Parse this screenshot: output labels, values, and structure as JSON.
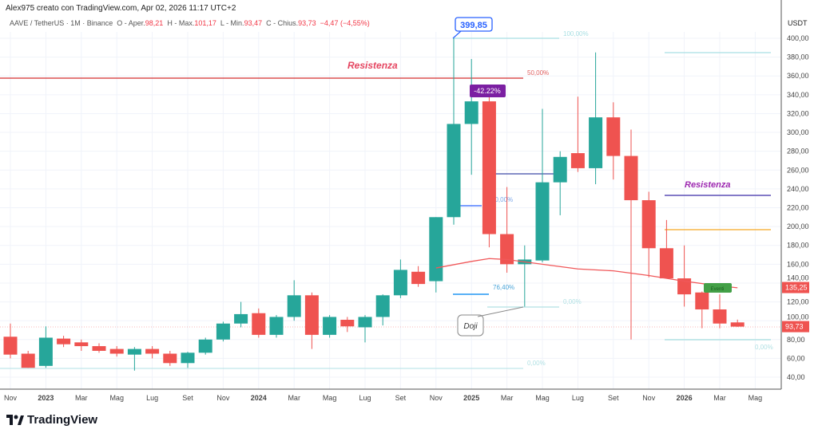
{
  "header": {
    "credit": "Alex975 creato con TradingView.com, Apr 02, 2026 11:17 UTC+2",
    "symbol": "AAVE / TetherUS · 1M · Binance",
    "o_label": "O - Aper.",
    "o": "98,21",
    "h_label": "H - Max.",
    "h": "101,17",
    "l_label": "L - Min.",
    "l": "93,47",
    "c_label": "C - Chius.",
    "c": "93,73",
    "change": "−4,47 (−4,55%)"
  },
  "logo": "TradingView",
  "colors": {
    "up": "#26a69a",
    "down": "#ef5350",
    "ma": "#f0585a"
  },
  "chart_data": {
    "type": "candlestick",
    "currency": "USDT",
    "ylim": [
      30,
      410
    ],
    "yticks": [
      "400,00",
      "380,00",
      "360,00",
      "340,00",
      "320,00",
      "300,00",
      "280,00",
      "260,00",
      "240,00",
      "220,00",
      "200,00",
      "180,00",
      "160,00",
      "140,00",
      "120,00",
      "100,00",
      "80,00",
      "60,00",
      "40,00"
    ],
    "xticks": [
      {
        "i": 0,
        "t": "Nov"
      },
      {
        "i": 2,
        "t": "2023"
      },
      {
        "i": 4,
        "t": "Mar"
      },
      {
        "i": 6,
        "t": "Mag"
      },
      {
        "i": 8,
        "t": "Lug"
      },
      {
        "i": 10,
        "t": "Set"
      },
      {
        "i": 12,
        "t": "Nov"
      },
      {
        "i": 14,
        "t": "2024"
      },
      {
        "i": 16,
        "t": "Mar"
      },
      {
        "i": 18,
        "t": "Mag"
      },
      {
        "i": 20,
        "t": "Lug"
      },
      {
        "i": 22,
        "t": "Set"
      },
      {
        "i": 24,
        "t": "Nov"
      },
      {
        "i": 26,
        "t": "2025"
      },
      {
        "i": 28,
        "t": "Mar"
      },
      {
        "i": 30,
        "t": "Mag"
      },
      {
        "i": 32,
        "t": "Lug"
      },
      {
        "i": 34,
        "t": "Set"
      },
      {
        "i": 36,
        "t": "Nov"
      },
      {
        "i": 38,
        "t": "2026"
      },
      {
        "i": 40,
        "t": "Mar"
      },
      {
        "i": 42,
        "t": "Mag"
      }
    ],
    "ohlc": [
      [
        83,
        97,
        60,
        64
      ],
      [
        65,
        68,
        50,
        50
      ],
      [
        52,
        94,
        50,
        82
      ],
      [
        81,
        84,
        72,
        75
      ],
      [
        77,
        80,
        68,
        73
      ],
      [
        73,
        76,
        66,
        68
      ],
      [
        70,
        73,
        62,
        65
      ],
      [
        64,
        72,
        47,
        70
      ],
      [
        70,
        73,
        60,
        65
      ],
      [
        65,
        68,
        52,
        55
      ],
      [
        55,
        67,
        50,
        66
      ],
      [
        66,
        82,
        64,
        80
      ],
      [
        80,
        99,
        78,
        97
      ],
      [
        97,
        120,
        93,
        107
      ],
      [
        108,
        113,
        82,
        85
      ],
      [
        85,
        106,
        82,
        104
      ],
      [
        104,
        143,
        100,
        127
      ],
      [
        127,
        130,
        70,
        85
      ],
      [
        85,
        106,
        82,
        104
      ],
      [
        101,
        104,
        88,
        94
      ],
      [
        93,
        106,
        77,
        104
      ],
      [
        104,
        128,
        95,
        127
      ],
      [
        127,
        165,
        124,
        154
      ],
      [
        152,
        158,
        136,
        139
      ],
      [
        142,
        210,
        130,
        210
      ],
      [
        210,
        400,
        202,
        309
      ],
      [
        309,
        378,
        255,
        333
      ],
      [
        333,
        339,
        178,
        192
      ],
      [
        192,
        242,
        151,
        160
      ],
      [
        160,
        180,
        115,
        165
      ],
      [
        164,
        325,
        162,
        247
      ],
      [
        247,
        280,
        212,
        274
      ],
      [
        278,
        338,
        258,
        262
      ],
      [
        262,
        385,
        245,
        316
      ],
      [
        316,
        332,
        250,
        275
      ],
      [
        275,
        303,
        80,
        228
      ],
      [
        228,
        237,
        146,
        177
      ],
      [
        177,
        207,
        145,
        145
      ],
      [
        145,
        180,
        115,
        128
      ],
      [
        130,
        131,
        92,
        112
      ],
      [
        112,
        128,
        92,
        97
      ],
      [
        98.21,
        101.17,
        93.47,
        93.73
      ]
    ],
    "ma": [
      [
        24,
        156
      ],
      [
        26,
        163
      ],
      [
        27,
        166
      ],
      [
        28,
        165
      ],
      [
        30,
        160
      ],
      [
        32,
        155
      ],
      [
        34,
        153
      ],
      [
        36,
        148
      ],
      [
        38,
        142
      ],
      [
        40,
        137
      ],
      [
        41,
        135
      ]
    ],
    "price_labels": [
      {
        "v": 135.25,
        "t": "135,25"
      },
      {
        "v": 93.73,
        "t": "93,73"
      }
    ],
    "annotations": {
      "high": "399,85",
      "drop": "-42.22%",
      "doji": "Doji",
      "res1": "Resistenza",
      "res2": "Resistenza",
      "fib100": "100,00%",
      "fib50a": "50,00%",
      "fib50b": "50,00%",
      "fib764": "76,40%",
      "fib0a": "0,00%",
      "fib0b": "0,00%",
      "fib0c": "0,00%",
      "marker": "Eventi"
    }
  }
}
